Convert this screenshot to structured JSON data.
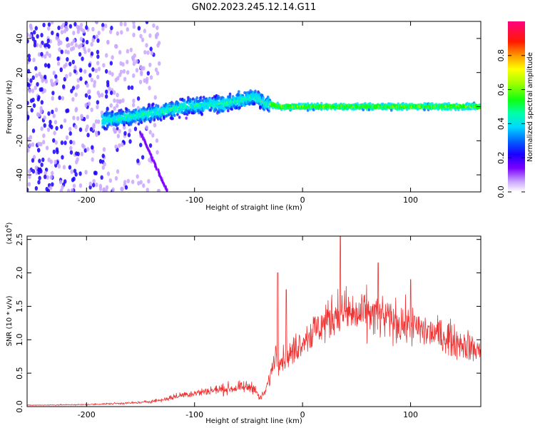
{
  "title": "GN02.2023.245.12.14.G11",
  "chart_data": [
    {
      "type": "heatmap",
      "xlabel": "Height of straight line (km)",
      "ylabel": "Frequency (Hz)",
      "xlim": [
        -255,
        165
      ],
      "ylim": [
        -50,
        50
      ],
      "xticks": [
        -200,
        -100,
        0,
        100
      ],
      "xtick_labels": [
        "-200",
        "-100",
        "0",
        "100"
      ],
      "yticks": [
        -40,
        -20,
        0,
        20,
        40
      ],
      "ytick_labels": [
        "-40",
        "-20",
        "0",
        "20",
        "40"
      ],
      "colorbar": {
        "label": "Normalized spectral amplitude",
        "range": [
          0,
          1
        ],
        "ticks": [
          0.0,
          0.2,
          0.4,
          0.6,
          0.8
        ],
        "tick_labels": [
          "0.0",
          "0.2",
          "0.4",
          "0.6",
          "0.8"
        ],
        "colormap": "rainbow"
      },
      "ridge": {
        "x": [
          -185,
          -170,
          -150,
          -130,
          -110,
          -90,
          -70,
          -55,
          -45,
          -35,
          -20,
          0,
          40,
          80,
          120,
          165
        ],
        "freq": [
          -8,
          -7,
          -5,
          -3,
          0,
          1,
          2,
          4,
          6,
          2,
          0,
          0,
          0,
          0,
          0,
          0
        ]
      },
      "background_noise_extent_x": [
        -255,
        -130
      ]
    },
    {
      "type": "line",
      "xlabel": "Height of straight line (km)",
      "ylabel": "SNR (10 * v/v)",
      "y_scale_label": "(x10",
      "y_scale_exp": "4",
      "y_scale_close": ")",
      "xlim": [
        -255,
        165
      ],
      "ylim": [
        0,
        2.55
      ],
      "xticks": [
        -200,
        -100,
        0,
        100
      ],
      "xtick_labels": [
        "-200",
        "-100",
        "0",
        "100"
      ],
      "yticks": [
        0.0,
        0.5,
        1.0,
        1.5,
        2.0,
        2.5
      ],
      "ytick_labels": [
        "0.0",
        "0.5",
        "1.0",
        "1.5",
        "2.0",
        "2.5"
      ],
      "color": "#ee3333",
      "envelope": {
        "x": [
          -255,
          -200,
          -150,
          -130,
          -110,
          -100,
          -80,
          -60,
          -45,
          -40,
          -35,
          -30,
          -25,
          -20,
          -10,
          0,
          20,
          35,
          50,
          60,
          70,
          80,
          100,
          120,
          140,
          165
        ],
        "y": [
          0.02,
          0.03,
          0.06,
          0.1,
          0.18,
          0.2,
          0.25,
          0.28,
          0.3,
          0.12,
          0.2,
          0.45,
          0.8,
          0.7,
          0.8,
          1.0,
          1.25,
          1.45,
          1.35,
          1.4,
          1.35,
          1.3,
          1.2,
          1.1,
          1.0,
          0.82
        ]
      },
      "peaks": [
        {
          "x": -23,
          "y": 2.0
        },
        {
          "x": -15,
          "y": 1.75
        },
        {
          "x": 35,
          "y": 2.55
        },
        {
          "x": 70,
          "y": 2.15
        },
        {
          "x": 100,
          "y": 1.9
        }
      ]
    }
  ]
}
